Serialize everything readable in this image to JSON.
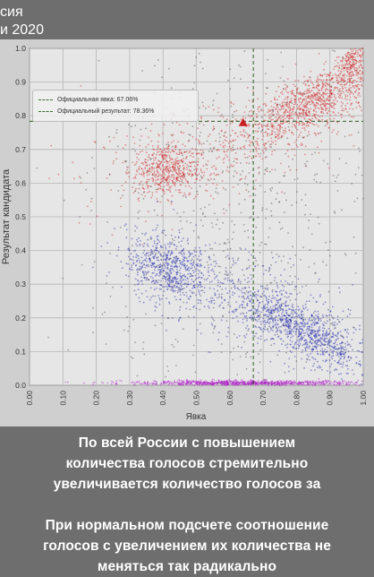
{
  "header": {
    "line1": "сия",
    "line2": "и 2020"
  },
  "legend": {
    "turnout": "Официальная явка: 67.06%",
    "result": "Официальный результат: 78.36%"
  },
  "chart_data": {
    "type": "scatter",
    "xlabel": "Явка",
    "ylabel": "Результат кандидата",
    "xlim": [
      0,
      1
    ],
    "ylim": [
      0,
      1
    ],
    "xticks": [
      "0.00",
      "0.10",
      "0.20",
      "0.30",
      "0.40",
      "0.50",
      "0.60",
      "0.70",
      "0.80",
      "0.90",
      "1.00"
    ],
    "yticks": [
      "0.0",
      "0.1",
      "0.2",
      "0.3",
      "0.4",
      "0.5",
      "0.6",
      "0.7",
      "0.8",
      "0.9",
      "1.0"
    ],
    "grid": true,
    "legend_position": "top-left",
    "reference_lines": {
      "turnout_x": 0.6706,
      "result_y": 0.7836
    },
    "marker": {
      "x": 0.64,
      "y": 0.78
    },
    "series": [
      {
        "color": "#cc2222",
        "clusters": [
          {
            "cx": 0.85,
            "cy": 0.84,
            "sx": 0.12,
            "sy": 0.07,
            "n": 1100,
            "rho": 0.8
          },
          {
            "cx": 0.97,
            "cy": 0.96,
            "sx": 0.03,
            "sy": 0.03,
            "n": 220,
            "rho": 0.5
          },
          {
            "cx": 0.41,
            "cy": 0.64,
            "sx": 0.05,
            "sy": 0.04,
            "n": 500,
            "rho": 0.0
          },
          {
            "cx": 0.55,
            "cy": 0.7,
            "sx": 0.2,
            "sy": 0.09,
            "n": 350,
            "rho": 0.5
          }
        ]
      },
      {
        "color": "#1c24a6",
        "clusters": [
          {
            "cx": 0.41,
            "cy": 0.35,
            "sx": 0.06,
            "sy": 0.05,
            "n": 600,
            "rho": -0.2
          },
          {
            "cx": 0.82,
            "cy": 0.16,
            "sx": 0.1,
            "sy": 0.06,
            "n": 900,
            "rho": -0.8
          },
          {
            "cx": 0.65,
            "cy": 0.26,
            "sx": 0.18,
            "sy": 0.09,
            "n": 450,
            "rho": -0.6
          }
        ]
      },
      {
        "color": "#b01ec8",
        "clusters": [
          {
            "cx": 0.65,
            "cy": 0.006,
            "sx": 0.18,
            "sy": 0.004,
            "n": 900,
            "rho": 0.0
          }
        ]
      },
      {
        "color": "#444444",
        "clusters": [
          {
            "cx": 0.62,
            "cy": 0.5,
            "sx": 0.22,
            "sy": 0.28,
            "n": 700,
            "rho": 0.0
          }
        ]
      }
    ]
  },
  "caption": {
    "p1_line1": "По всей России с повышением",
    "p1_line2": "количества голосов стремительно",
    "p1_line3": "увеличивается количество голосов за",
    "p2_line1": "При нормальном подсчете соотношение",
    "p2_line2": "голосов с увеличением их количества не",
    "p2_line3": "меняться так радикально"
  }
}
